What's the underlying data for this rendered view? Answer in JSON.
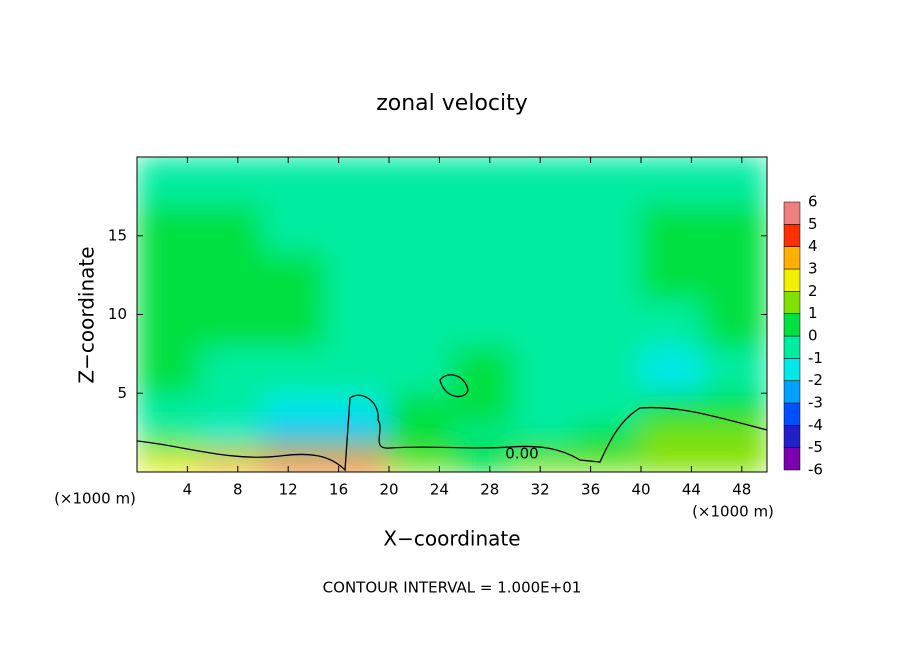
{
  "chart_data": {
    "type": "heatmap",
    "title": "zonal velocity",
    "x_label": "X−coordinate",
    "y_label": "Z−coordinate",
    "x_unit": "(×1000 m)",
    "footer": "CONTOUR INTERVAL = 1.000E+01",
    "contour_label": "0.00",
    "xlim": [
      0,
      50
    ],
    "xticks": [
      4,
      8,
      12,
      16,
      20,
      24,
      28,
      32,
      36,
      40,
      44,
      48
    ],
    "ylim": [
      0,
      20
    ],
    "yticks": [
      5,
      10,
      15
    ],
    "x_edges": [
      0,
      5,
      10,
      15,
      20,
      25,
      30,
      35,
      40,
      45,
      50
    ],
    "z_edges": [
      0,
      1,
      2,
      3,
      5,
      8,
      11,
      14,
      17,
      20
    ],
    "values": [
      [
        2,
        3,
        4.5,
        4.5,
        1,
        0.5,
        1,
        1,
        1,
        1.5
      ],
      [
        1,
        1.5,
        1,
        1,
        0,
        0.5,
        0.5,
        0,
        1.5,
        1.5
      ],
      [
        -1,
        -1.5,
        -2.5,
        -2.5,
        0,
        -1,
        -0.5,
        0,
        1,
        1
      ],
      [
        -1,
        -1,
        -2,
        -2,
        0,
        0,
        -0.5,
        -0.5,
        0.5,
        0.5
      ],
      [
        0,
        -0.5,
        -1,
        -1,
        -0.5,
        0,
        -0.5,
        -1,
        -1.5,
        -1
      ],
      [
        0.5,
        0.5,
        0,
        -0.5,
        -0.5,
        -0.5,
        -0.5,
        -1,
        -1,
        0
      ],
      [
        0.5,
        0.5,
        0,
        -0.5,
        -1,
        -1,
        -1,
        -0.5,
        0,
        0.5
      ],
      [
        0,
        0,
        -0.5,
        -1,
        -1,
        -1,
        -1,
        -0.5,
        0,
        0
      ],
      [
        -0.5,
        -0.5,
        -1,
        -1,
        -0.5,
        -0.5,
        -0.5,
        -0.5,
        -0.5,
        -0.5
      ]
    ],
    "colorbar": {
      "levels": [
        -6,
        -5,
        -4,
        -3,
        -2,
        -1,
        0,
        1,
        2,
        3,
        4,
        5,
        6
      ],
      "colors": [
        "#7a00b0",
        "#2020c8",
        "#0050ff",
        "#00a0ff",
        "#00e8e8",
        "#00eca0",
        "#00e040",
        "#80e000",
        "#f0f000",
        "#ffb000",
        "#ff3000",
        "#f08080"
      ]
    }
  }
}
